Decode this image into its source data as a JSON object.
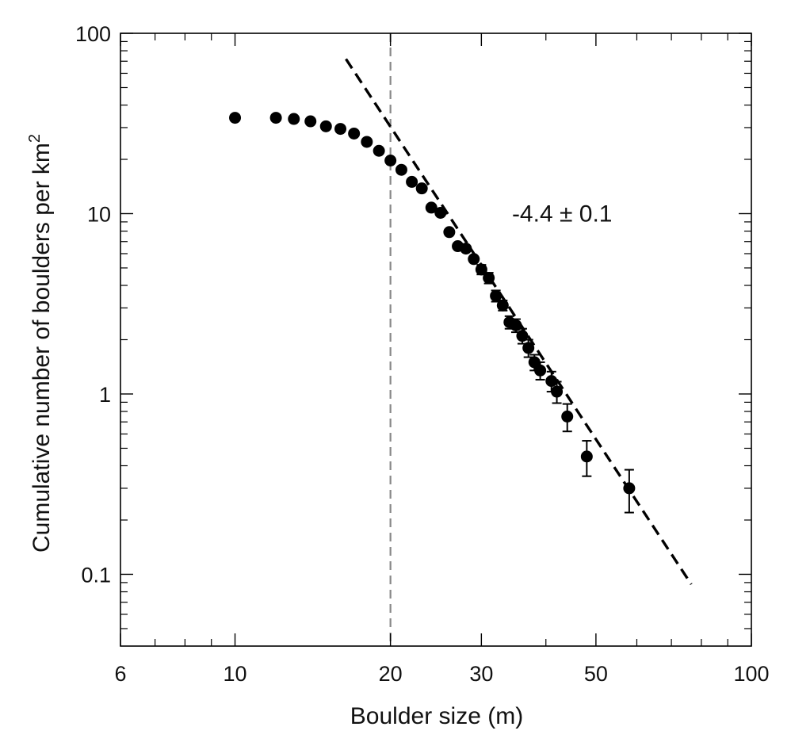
{
  "chart_data": {
    "type": "scatter",
    "title": "",
    "xlabel": "Boulder size (m)",
    "ylabel_main": "Cumulative number of boulders per km",
    "ylabel_sup": "2",
    "x_scale": "log",
    "y_scale": "log",
    "xlim": [
      6,
      100
    ],
    "ylim": [
      0.04,
      100
    ],
    "x_tick_labels": [
      {
        "value": 6,
        "label": "6"
      },
      {
        "value": 10,
        "label": "10"
      },
      {
        "value": 20,
        "label": "20"
      },
      {
        "value": 30,
        "label": "30"
      },
      {
        "value": 50,
        "label": "50"
      },
      {
        "value": 100,
        "label": "100"
      }
    ],
    "y_tick_labels": [
      {
        "value": 0.1,
        "label": "0.1"
      },
      {
        "value": 1,
        "label": "1"
      },
      {
        "value": 10,
        "label": "10"
      },
      {
        "value": 100,
        "label": "100"
      }
    ],
    "x_minor_ticks": [
      7,
      8,
      9,
      40,
      60,
      70,
      80,
      90
    ],
    "y_minor_ticks": [
      0.05,
      0.06,
      0.07,
      0.08,
      0.09,
      0.2,
      0.3,
      0.4,
      0.5,
      0.6,
      0.7,
      0.8,
      0.9,
      2,
      3,
      4,
      5,
      6,
      7,
      8,
      9,
      20,
      30,
      40,
      50,
      60,
      70,
      80,
      90
    ],
    "grid": false,
    "series": [
      {
        "points": [
          {
            "x": 10.0,
            "y": 34
          },
          {
            "x": 12.0,
            "y": 34
          },
          {
            "x": 13.0,
            "y": 33.5
          },
          {
            "x": 14.0,
            "y": 32.5
          },
          {
            "x": 15.0,
            "y": 30.5
          },
          {
            "x": 16.0,
            "y": 29.5
          },
          {
            "x": 17.0,
            "y": 27.8
          },
          {
            "x": 18.0,
            "y": 25
          },
          {
            "x": 19.0,
            "y": 22.3
          },
          {
            "x": 20.0,
            "y": 19.7
          },
          {
            "x": 21.0,
            "y": 17.5
          },
          {
            "x": 22.0,
            "y": 15
          },
          {
            "x": 23.0,
            "y": 13.8
          },
          {
            "x": 24.0,
            "y": 10.8
          },
          {
            "x": 25.0,
            "y": 10.1
          },
          {
            "x": 26.0,
            "y": 7.9
          },
          {
            "x": 27.0,
            "y": 6.6
          },
          {
            "x": 28.0,
            "y": 6.4
          },
          {
            "x": 29.0,
            "y": 5.6
          },
          {
            "x": 30.0,
            "y": 4.9,
            "err": 0.3
          },
          {
            "x": 31.0,
            "y": 4.4,
            "err": 0.3
          },
          {
            "x": 32.0,
            "y": 3.5,
            "err": 0.25
          },
          {
            "x": 33.0,
            "y": 3.1,
            "err": 0.2
          },
          {
            "x": 34.0,
            "y": 2.5,
            "err": 0.2
          },
          {
            "x": 35.0,
            "y": 2.4,
            "err": 0.2
          },
          {
            "x": 36.0,
            "y": 2.1,
            "err": 0.2
          },
          {
            "x": 37.0,
            "y": 1.8,
            "err": 0.2
          },
          {
            "x": 38.0,
            "y": 1.5,
            "err": 0.15
          },
          {
            "x": 39.0,
            "y": 1.35,
            "err": 0.15
          },
          {
            "x": 41.0,
            "y": 1.18,
            "err": 0.15
          },
          {
            "x": 42.0,
            "y": 1.03,
            "err": 0.14
          },
          {
            "x": 44.0,
            "y": 0.75,
            "err": 0.13
          },
          {
            "x": 48.0,
            "y": 0.45,
            "err": 0.1
          },
          {
            "x": 58.0,
            "y": 0.3,
            "err": 0.08
          }
        ]
      }
    ],
    "fit_line": {
      "x": [
        16.4,
        76.5
      ],
      "y": [
        72,
        0.088
      ],
      "style": "dashed"
    },
    "reference_line": {
      "x": 20,
      "style": "dashed"
    },
    "annotation": {
      "text": "-4.4 ± 0.1",
      "x": 43,
      "y": 10
    },
    "colors": {
      "points": "#000000",
      "fit": "#000000",
      "reference": "#888888",
      "axes": "#000000"
    }
  }
}
